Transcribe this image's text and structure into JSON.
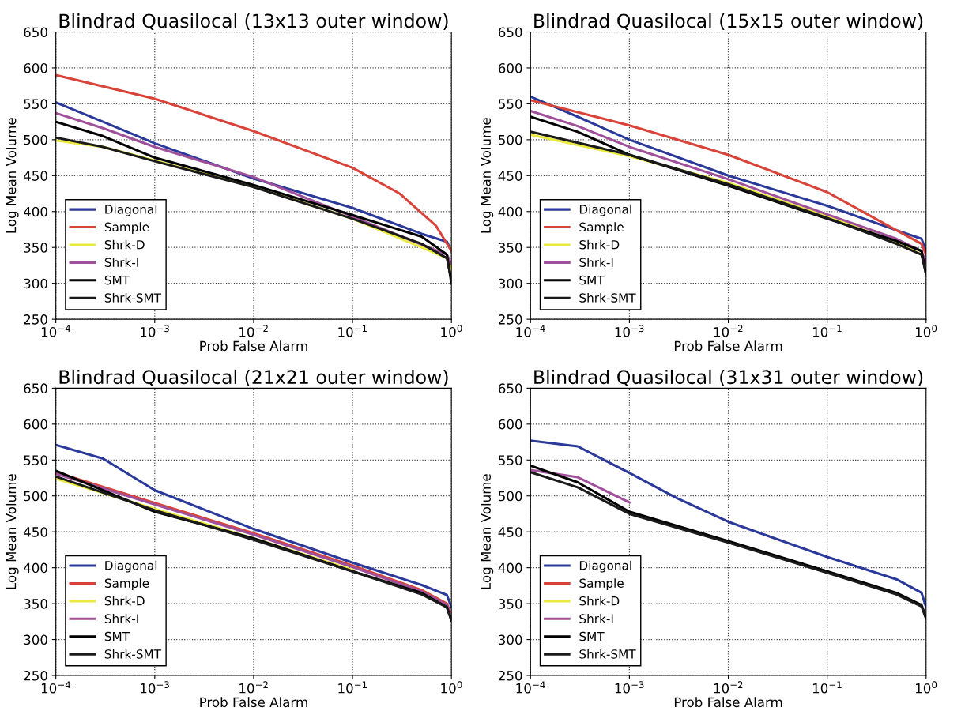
{
  "chart_data": [
    {
      "type": "line",
      "title": "Blindrad Quasilocal (13x13 outer window)",
      "xlabel": "Prob False Alarm",
      "ylabel": "Log Mean Volume",
      "log": "x",
      "grid": true,
      "legend": "bottom left",
      "xlim": [
        0.0001,
        1
      ],
      "ylim": [
        250,
        650
      ],
      "xticks": [
        {
          "value": 0.0001,
          "label": "10$^{−4}$"
        },
        {
          "value": 0.001,
          "label": "10$^{−3}$"
        },
        {
          "value": 0.01,
          "label": "10$^{−2}$"
        },
        {
          "value": 0.1,
          "label": "10$^{−1}$"
        },
        {
          "value": 1,
          "label": "10$^{0}$"
        }
      ],
      "yticks": [
        250,
        300,
        350,
        400,
        450,
        500,
        550,
        600,
        650
      ],
      "series": [
        {
          "name": "Diagonal",
          "color": "#2b3a9a",
          "x": [
            0.0001,
            0.0003,
            0.001,
            0.01,
            0.1,
            0.5,
            0.9,
            1
          ],
          "values": [
            552,
            525,
            495,
            446,
            405,
            369,
            358,
            345
          ]
        },
        {
          "name": "Sample",
          "color": "#d9443a",
          "x": [
            0.0001,
            0.001,
            0.01,
            0.1,
            0.3,
            0.7,
            1
          ],
          "values": [
            590,
            557,
            512,
            461,
            425,
            380,
            345
          ]
        },
        {
          "name": "Shrk-D",
          "color": "#eaea3c",
          "x": [
            0.0001,
            0.0003,
            0.001,
            0.01,
            0.1,
            0.5,
            0.9,
            1
          ],
          "values": [
            499,
            490,
            471,
            435,
            390,
            350,
            335,
            320
          ]
        },
        {
          "name": "Shrk-I",
          "color": "#a0509a",
          "x": [
            0.0001,
            0.0003,
            0.001,
            0.01,
            0.1,
            0.5,
            0.9,
            1
          ],
          "values": [
            537,
            516,
            490,
            448,
            393,
            354,
            340,
            327
          ]
        },
        {
          "name": "SMT",
          "color": "#000000",
          "x": [
            0.0001,
            0.0003,
            0.001,
            0.01,
            0.1,
            0.5,
            0.9,
            1
          ],
          "values": [
            525,
            505,
            475,
            437,
            395,
            365,
            340,
            300
          ]
        },
        {
          "name": "Shrk-SMT",
          "color": "#1a1a1a",
          "x": [
            0.0001,
            0.0003,
            0.001,
            0.01,
            0.1,
            0.5,
            0.9,
            1
          ],
          "values": [
            503,
            490,
            470,
            434,
            390,
            355,
            335,
            305
          ]
        }
      ]
    },
    {
      "type": "line",
      "title": "Blindrad Quasilocal (15x15 outer window)",
      "xlabel": "Prob False Alarm",
      "ylabel": "Log Mean Volume",
      "log": "x",
      "grid": true,
      "legend": "bottom left",
      "xlim": [
        0.0001,
        1
      ],
      "ylim": [
        250,
        650
      ],
      "xticks": [
        {
          "value": 0.0001,
          "label": "10$^{−4}$"
        },
        {
          "value": 0.001,
          "label": "10$^{−3}$"
        },
        {
          "value": 0.01,
          "label": "10$^{−2}$"
        },
        {
          "value": 0.1,
          "label": "10$^{−1}$"
        },
        {
          "value": 1,
          "label": "10$^{0}$"
        }
      ],
      "yticks": [
        250,
        300,
        350,
        400,
        450,
        500,
        550,
        600,
        650
      ],
      "series": [
        {
          "name": "Diagonal",
          "color": "#2b3a9a",
          "x": [
            0.0001,
            0.0003,
            0.001,
            0.01,
            0.1,
            0.5,
            0.9,
            1
          ],
          "values": [
            560,
            532,
            500,
            450,
            408,
            374,
            362,
            345
          ]
        },
        {
          "name": "Sample",
          "color": "#d9443a",
          "x": [
            0.0001,
            0.001,
            0.01,
            0.1,
            0.5,
            0.9,
            1
          ],
          "values": [
            555,
            520,
            479,
            427,
            374,
            355,
            340
          ]
        },
        {
          "name": "Shrk-D",
          "color": "#eaea3c",
          "x": [
            0.0001,
            0.001,
            0.01,
            0.1,
            0.5,
            0.9,
            1
          ],
          "values": [
            507,
            477,
            440,
            393,
            358,
            340,
            320
          ]
        },
        {
          "name": "Shrk-I",
          "color": "#a0509a",
          "x": [
            0.0001,
            0.0003,
            0.001,
            0.01,
            0.1,
            0.5,
            0.9,
            1
          ],
          "values": [
            540,
            519,
            490,
            445,
            396,
            362,
            345,
            328
          ]
        },
        {
          "name": "SMT",
          "color": "#000000",
          "x": [
            0.0001,
            0.0003,
            0.001,
            0.01,
            0.1,
            0.5,
            0.9,
            1
          ],
          "values": [
            532,
            511,
            479,
            436,
            390,
            359,
            345,
            313
          ]
        },
        {
          "name": "Shrk-SMT",
          "color": "#1a1a1a",
          "x": [
            0.0001,
            0.001,
            0.01,
            0.1,
            0.5,
            0.9,
            1
          ],
          "values": [
            511,
            479,
            438,
            391,
            355,
            340,
            313
          ]
        }
      ]
    },
    {
      "type": "line",
      "title": "Blindrad Quasilocal (21x21 outer window)",
      "xlabel": "Prob False Alarm",
      "ylabel": "Log Mean Volume",
      "log": "x",
      "grid": true,
      "legend": "bottom left",
      "xlim": [
        0.0001,
        1
      ],
      "ylim": [
        250,
        650
      ],
      "xticks": [
        {
          "value": 0.0001,
          "label": "10$^{−4}$"
        },
        {
          "value": 0.001,
          "label": "10$^{−3}$"
        },
        {
          "value": 0.01,
          "label": "10$^{−2}$"
        },
        {
          "value": 0.1,
          "label": "10$^{−1}$"
        },
        {
          "value": 1,
          "label": "10$^{0}$"
        }
      ],
      "yticks": [
        250,
        300,
        350,
        400,
        450,
        500,
        550,
        600,
        650
      ],
      "series": [
        {
          "name": "Diagonal",
          "color": "#2b3a9a",
          "x": [
            0.0001,
            0.0003,
            0.001,
            0.01,
            0.1,
            0.5,
            0.9,
            1
          ],
          "values": [
            571,
            552,
            508,
            454,
            407,
            376,
            362,
            345
          ]
        },
        {
          "name": "Sample",
          "color": "#d9443a",
          "x": [
            0.0001,
            0.001,
            0.01,
            0.1,
            0.5,
            0.9,
            1
          ],
          "values": [
            533,
            490,
            448,
            403,
            369,
            350,
            335
          ]
        },
        {
          "name": "Shrk-D",
          "color": "#eaea3c",
          "x": [
            0.0001,
            0.001,
            0.01,
            0.1
          ],
          "values": [
            524,
            482,
            441,
            397
          ]
        },
        {
          "name": "Shrk-I",
          "color": "#a0509a",
          "x": [
            0.0001,
            0.001,
            0.01,
            0.1,
            0.5,
            0.9,
            1
          ],
          "values": [
            531,
            488,
            446,
            401,
            367,
            348,
            331
          ]
        },
        {
          "name": "SMT",
          "color": "#000000",
          "x": [
            0.0001,
            0.001,
            0.01,
            0.1,
            0.5,
            0.9,
            1
          ],
          "values": [
            535,
            478,
            441,
            395,
            365,
            345,
            327
          ]
        },
        {
          "name": "Shrk-SMT",
          "color": "#1a1a1a",
          "x": [
            0.0001,
            0.001,
            0.01,
            0.1,
            0.5,
            0.9,
            1
          ],
          "values": [
            527,
            480,
            439,
            395,
            363,
            345,
            327
          ]
        }
      ]
    },
    {
      "type": "line",
      "title": "Blindrad Quasilocal (31x31 outer window)",
      "xlabel": "Prob False Alarm",
      "ylabel": "Log Mean Volume",
      "log": "x",
      "grid": true,
      "legend": "bottom left",
      "xlim": [
        0.0001,
        1
      ],
      "ylim": [
        250,
        650
      ],
      "xticks": [
        {
          "value": 0.0001,
          "label": "10$^{−4}$"
        },
        {
          "value": 0.001,
          "label": "10$^{−3}$"
        },
        {
          "value": 0.01,
          "label": "10$^{−2}$"
        },
        {
          "value": 0.1,
          "label": "10$^{−1}$"
        },
        {
          "value": 1,
          "label": "10$^{0}$"
        }
      ],
      "yticks": [
        250,
        300,
        350,
        400,
        450,
        500,
        550,
        600,
        650
      ],
      "series": [
        {
          "name": "Diagonal",
          "color": "#2b3a9a",
          "x": [
            0.0001,
            0.0003,
            0.001,
            0.003,
            0.01,
            0.1,
            0.5,
            0.9,
            1
          ],
          "values": [
            577,
            569,
            532,
            497,
            464,
            415,
            384,
            365,
            345
          ]
        },
        {
          "name": "Sample",
          "color": "#d9443a"
        },
        {
          "name": "Shrk-D",
          "color": "#eaea3c"
        },
        {
          "name": "Shrk-I",
          "color": "#a0509a",
          "x": [
            0.0001,
            0.0003,
            0.001
          ],
          "values": [
            536,
            526,
            491
          ]
        },
        {
          "name": "SMT",
          "color": "#000000",
          "x": [
            0.0001,
            0.0003,
            0.001,
            0.01,
            0.1,
            0.5,
            0.9,
            1
          ],
          "values": [
            542,
            519,
            478,
            437,
            395,
            365,
            348,
            331
          ]
        },
        {
          "name": "Shrk-SMT",
          "color": "#1a1a1a",
          "x": [
            0.0001,
            0.0003,
            0.001,
            0.01,
            0.1,
            0.5,
            0.9,
            1
          ],
          "values": [
            533,
            512,
            475,
            435,
            393,
            363,
            346,
            329
          ]
        }
      ]
    }
  ]
}
